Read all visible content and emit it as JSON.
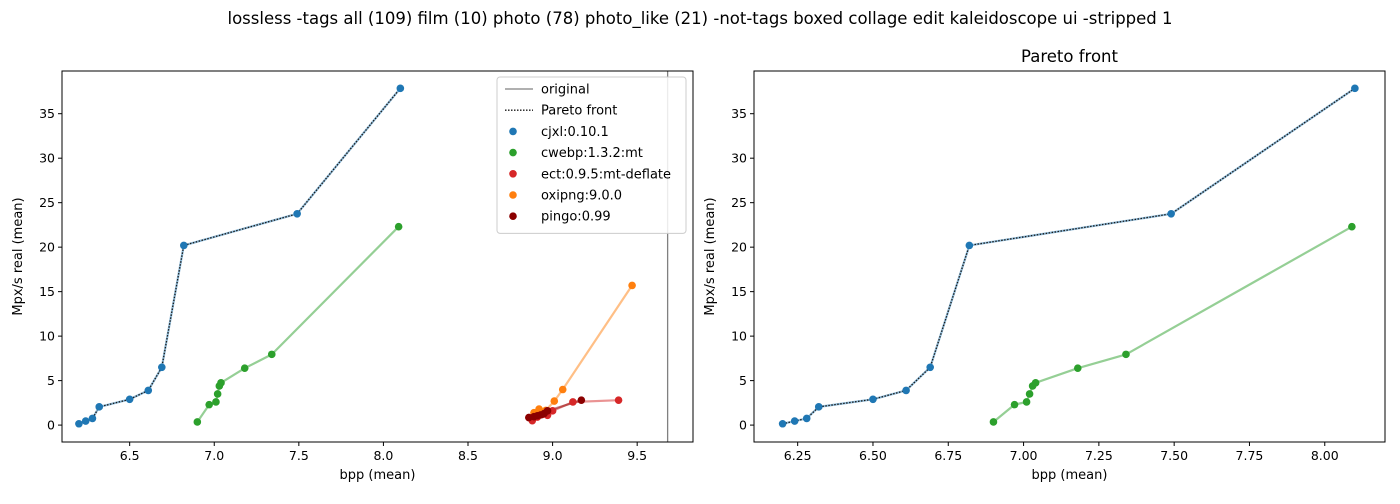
{
  "figure": {
    "suptitle": "lossless -tags all (109) film (10) photo (78) photo_like (21) -not-tags boxed collage edit kaleidoscope ui -stripped 1"
  },
  "legend": {
    "original_label": "original",
    "pareto_label": "Pareto front"
  },
  "colors": {
    "cjxl": "#1f77b4",
    "cwebp": "#2ca02c",
    "ect": "#d62728",
    "oxipng": "#ff7f0e",
    "pingo": "#8b0000",
    "original": "#808080",
    "pareto": "#1a1a1a"
  },
  "chart_data": [
    {
      "type": "line",
      "title": "",
      "xlabel": "bpp (mean)",
      "ylabel": "Mpx/s real (mean)",
      "xlim": [
        6.1,
        9.83
      ],
      "ylim": [
        -1.9,
        39.8
      ],
      "xticks": [
        6.5,
        7.0,
        7.5,
        8.0,
        8.5,
        9.0,
        9.5
      ],
      "xtick_labels": [
        "6.5",
        "7.0",
        "7.5",
        "8.0",
        "8.5",
        "9.0",
        "9.5"
      ],
      "yticks": [
        0,
        5,
        10,
        15,
        20,
        25,
        30,
        35
      ],
      "ytick_labels": [
        "0",
        "5",
        "10",
        "15",
        "20",
        "25",
        "30",
        "35"
      ],
      "original_x": 9.68,
      "legend_position": "upper right",
      "pareto": [
        [
          6.2,
          0.15
        ],
        [
          6.24,
          0.45
        ],
        [
          6.28,
          0.75
        ],
        [
          6.32,
          2.05
        ],
        [
          6.5,
          2.9
        ],
        [
          6.61,
          3.9
        ],
        [
          6.69,
          6.5
        ],
        [
          6.82,
          20.2
        ],
        [
          7.49,
          23.75
        ],
        [
          8.1,
          37.85
        ]
      ],
      "series": [
        {
          "name": "cjxl:0.10.1",
          "key": "cjxl",
          "points": [
            [
              6.2,
              0.15
            ],
            [
              6.24,
              0.45
            ],
            [
              6.28,
              0.75
            ],
            [
              6.32,
              2.05
            ],
            [
              6.5,
              2.9
            ],
            [
              6.61,
              3.9
            ],
            [
              6.69,
              6.5
            ],
            [
              6.82,
              20.2
            ],
            [
              7.49,
              23.75
            ],
            [
              8.1,
              37.85
            ]
          ]
        },
        {
          "name": "cwebp:1.3.2:mt",
          "key": "cwebp",
          "points": [
            [
              6.9,
              0.35
            ],
            [
              6.97,
              2.3
            ],
            [
              7.01,
              2.6
            ],
            [
              7.02,
              3.5
            ],
            [
              7.03,
              4.4
            ],
            [
              7.04,
              4.75
            ],
            [
              7.18,
              6.4
            ],
            [
              7.34,
              7.95
            ],
            [
              8.09,
              22.3
            ]
          ]
        },
        {
          "name": "ect:0.9.5:mt-deflate",
          "key": "ect",
          "points": [
            [
              8.86,
              0.85
            ],
            [
              8.88,
              0.5
            ],
            [
              8.91,
              0.9
            ],
            [
              8.94,
              1.2
            ],
            [
              8.97,
              1.1
            ],
            [
              9.0,
              1.6
            ],
            [
              9.12,
              2.6
            ],
            [
              9.39,
              2.8
            ]
          ]
        },
        {
          "name": "oxipng:9.0.0",
          "key": "oxipng",
          "points": [
            [
              8.89,
              1.4
            ],
            [
              8.92,
              1.8
            ],
            [
              8.96,
              1.65
            ],
            [
              9.01,
              2.7
            ],
            [
              9.06,
              4.0
            ],
            [
              9.47,
              15.7
            ]
          ]
        },
        {
          "name": "pingo:0.99",
          "key": "pingo",
          "points": [
            [
              8.86,
              0.85
            ],
            [
              8.89,
              0.95
            ],
            [
              8.91,
              1.05
            ],
            [
              8.93,
              1.15
            ],
            [
              8.95,
              1.3
            ],
            [
              8.97,
              1.6
            ],
            [
              9.17,
              2.8
            ]
          ]
        }
      ]
    },
    {
      "type": "line",
      "title": "Pareto front",
      "xlabel": "bpp (mean)",
      "ylabel": "Mpx/s real (mean)",
      "xlim": [
        6.105,
        8.2
      ],
      "ylim": [
        -1.9,
        39.8
      ],
      "xticks": [
        6.25,
        6.5,
        6.75,
        7.0,
        7.25,
        7.5,
        7.75,
        8.0
      ],
      "xtick_labels": [
        "6.25",
        "6.50",
        "6.75",
        "7.00",
        "7.25",
        "7.50",
        "7.75",
        "8.00"
      ],
      "yticks": [
        0,
        5,
        10,
        15,
        20,
        25,
        30,
        35
      ],
      "ytick_labels": [
        "0",
        "5",
        "10",
        "15",
        "20",
        "25",
        "30",
        "35"
      ],
      "pareto": [
        [
          6.2,
          0.15
        ],
        [
          6.24,
          0.45
        ],
        [
          6.28,
          0.75
        ],
        [
          6.32,
          2.05
        ],
        [
          6.5,
          2.9
        ],
        [
          6.61,
          3.9
        ],
        [
          6.69,
          6.5
        ],
        [
          6.82,
          20.2
        ],
        [
          7.49,
          23.75
        ],
        [
          8.1,
          37.85
        ]
      ],
      "series": [
        {
          "name": "cjxl:0.10.1",
          "key": "cjxl",
          "points": [
            [
              6.2,
              0.15
            ],
            [
              6.24,
              0.45
            ],
            [
              6.28,
              0.75
            ],
            [
              6.32,
              2.05
            ],
            [
              6.5,
              2.9
            ],
            [
              6.61,
              3.9
            ],
            [
              6.69,
              6.5
            ],
            [
              6.82,
              20.2
            ],
            [
              7.49,
              23.75
            ],
            [
              8.1,
              37.85
            ]
          ]
        },
        {
          "name": "cwebp:1.3.2:mt",
          "key": "cwebp",
          "points": [
            [
              6.9,
              0.35
            ],
            [
              6.97,
              2.3
            ],
            [
              7.01,
              2.6
            ],
            [
              7.02,
              3.5
            ],
            [
              7.03,
              4.4
            ],
            [
              7.04,
              4.75
            ],
            [
              7.18,
              6.4
            ],
            [
              7.34,
              7.95
            ],
            [
              8.09,
              22.3
            ]
          ]
        }
      ]
    }
  ]
}
